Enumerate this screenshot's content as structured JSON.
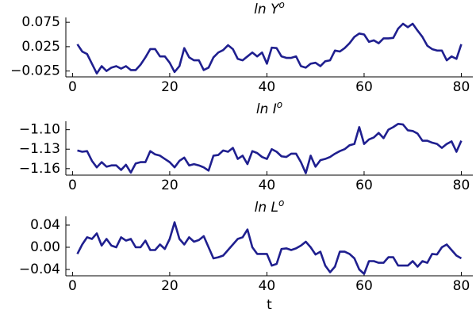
{
  "chart_data": [
    {
      "type": "line",
      "title": "ln Y",
      "title_superscript": "o",
      "x": [
        1,
        2,
        3,
        4,
        5,
        6,
        7,
        8,
        9,
        10,
        11,
        12,
        13,
        14,
        15,
        16,
        17,
        18,
        19,
        20,
        21,
        22,
        23,
        24,
        25,
        26,
        27,
        28,
        29,
        30,
        31,
        32,
        33,
        34,
        35,
        36,
        37,
        38,
        39,
        40,
        41,
        42,
        43,
        44,
        45,
        46,
        47,
        48,
        49,
        50,
        51,
        52,
        53,
        54,
        55,
        56,
        57,
        58,
        59,
        60,
        61,
        62,
        63,
        64,
        65,
        66,
        67,
        68,
        69,
        70,
        71,
        72,
        73,
        74,
        75,
        76,
        77,
        78,
        79,
        80
      ],
      "series": [
        {
          "color": "#1f1f8f",
          "values": [
            0.03,
            0.015,
            0.01,
            -0.01,
            -0.03,
            -0.015,
            -0.025,
            -0.018,
            -0.015,
            -0.02,
            -0.015,
            -0.023,
            -0.023,
            -0.012,
            0.003,
            0.02,
            0.02,
            0.005,
            0.005,
            -0.008,
            -0.027,
            -0.015,
            0.022,
            0.003,
            -0.003,
            -0.003,
            -0.023,
            -0.018,
            0.003,
            0.013,
            0.018,
            0.028,
            0.02,
            0.0,
            -0.003,
            0.005,
            0.013,
            0.005,
            0.013,
            -0.01,
            0.023,
            0.022,
            0.005,
            0.002,
            0.002,
            0.005,
            -0.015,
            -0.018,
            -0.01,
            -0.008,
            -0.015,
            -0.005,
            -0.003,
            0.017,
            0.015,
            0.022,
            0.032,
            0.045,
            0.052,
            0.05,
            0.035,
            0.038,
            0.032,
            0.042,
            0.042,
            0.043,
            0.062,
            0.072,
            0.065,
            0.072,
            0.058,
            0.045,
            0.027,
            0.02,
            0.017,
            0.017,
            -0.003,
            0.005,
            0.0,
            0.03
          ]
        }
      ],
      "xlim": [
        -1.37,
        82.37
      ],
      "xticks": [
        0,
        20,
        40,
        60,
        80
      ],
      "ylim": [
        -0.037,
        0.085
      ],
      "yticks": [
        0.075,
        0.025,
        {
          "value": -0.025,
          "label": "−0.025"
        }
      ],
      "grid": false
    },
    {
      "type": "line",
      "title": "ln I",
      "title_superscript": "o",
      "x": [
        1,
        2,
        3,
        4,
        5,
        6,
        7,
        8,
        9,
        10,
        11,
        12,
        13,
        14,
        15,
        16,
        17,
        18,
        19,
        20,
        21,
        22,
        23,
        24,
        25,
        26,
        27,
        28,
        29,
        30,
        31,
        32,
        33,
        34,
        35,
        36,
        37,
        38,
        39,
        40,
        41,
        42,
        43,
        44,
        45,
        46,
        47,
        48,
        49,
        50,
        51,
        52,
        53,
        54,
        55,
        56,
        57,
        58,
        59,
        60,
        61,
        62,
        63,
        64,
        65,
        66,
        67,
        68,
        69,
        70,
        71,
        72,
        73,
        74,
        75,
        76,
        77,
        78,
        79,
        80
      ],
      "series": [
        {
          "color": "#1f1f8f",
          "values": [
            -1.132,
            -1.134,
            -1.133,
            -1.148,
            -1.158,
            -1.15,
            -1.157,
            -1.155,
            -1.155,
            -1.162,
            -1.154,
            -1.166,
            -1.152,
            -1.15,
            -1.15,
            -1.133,
            -1.138,
            -1.14,
            -1.145,
            -1.15,
            -1.158,
            -1.148,
            -1.143,
            -1.155,
            -1.153,
            -1.155,
            -1.158,
            -1.163,
            -1.14,
            -1.139,
            -1.132,
            -1.134,
            -1.128,
            -1.145,
            -1.14,
            -1.153,
            -1.133,
            -1.136,
            -1.142,
            -1.145,
            -1.13,
            -1.134,
            -1.141,
            -1.142,
            -1.137,
            -1.137,
            -1.15,
            -1.167,
            -1.14,
            -1.157,
            -1.147,
            -1.145,
            -1.142,
            -1.137,
            -1.133,
            -1.13,
            -1.124,
            -1.122,
            -1.096,
            -1.122,
            -1.115,
            -1.112,
            -1.105,
            -1.113,
            -1.1,
            -1.096,
            -1.091,
            -1.092,
            -1.101,
            -1.102,
            -1.106,
            -1.117,
            -1.117,
            -1.12,
            -1.122,
            -1.128,
            -1.122,
            -1.118,
            -1.134,
            -1.117
          ]
        }
      ],
      "xlim": [
        -1.37,
        82.37
      ],
      "xticks": [
        0,
        20,
        40,
        60,
        80
      ],
      "ylim": [
        -1.17,
        -1.087
      ],
      "yticks": [
        {
          "value": -1.1,
          "label": "−1.10"
        },
        {
          "value": -1.13,
          "label": "−1.13"
        },
        {
          "value": -1.16,
          "label": "−1.16"
        }
      ],
      "grid": false
    },
    {
      "type": "line",
      "title": "ln L",
      "title_superscript": "o",
      "xlabel": "t",
      "x": [
        1,
        2,
        3,
        4,
        5,
        6,
        7,
        8,
        9,
        10,
        11,
        12,
        13,
        14,
        15,
        16,
        17,
        18,
        19,
        20,
        21,
        22,
        23,
        24,
        25,
        26,
        27,
        28,
        29,
        30,
        31,
        32,
        33,
        34,
        35,
        36,
        37,
        38,
        39,
        40,
        41,
        42,
        43,
        44,
        45,
        46,
        47,
        48,
        49,
        50,
        51,
        52,
        53,
        54,
        55,
        56,
        57,
        58,
        59,
        60,
        61,
        62,
        63,
        64,
        65,
        66,
        67,
        68,
        69,
        70,
        71,
        72,
        73,
        74,
        75,
        76,
        77,
        78,
        79,
        80
      ],
      "series": [
        {
          "color": "#1f1f8f",
          "values": [
            -0.012,
            0.005,
            0.018,
            0.015,
            0.025,
            0.003,
            0.015,
            0.003,
            0.0,
            0.018,
            0.012,
            0.015,
            0.0,
            0.0,
            0.012,
            -0.005,
            -0.005,
            0.005,
            -0.003,
            0.015,
            0.045,
            0.015,
            0.005,
            0.018,
            0.01,
            0.013,
            0.02,
            0.0,
            -0.02,
            -0.018,
            -0.015,
            -0.005,
            0.005,
            0.015,
            0.018,
            0.032,
            0.0,
            -0.012,
            -0.012,
            -0.012,
            -0.033,
            -0.03,
            -0.003,
            -0.002,
            -0.005,
            -0.002,
            0.003,
            0.01,
            0.0,
            -0.013,
            -0.008,
            -0.033,
            -0.045,
            -0.035,
            -0.008,
            -0.008,
            -0.012,
            -0.02,
            -0.04,
            -0.048,
            -0.025,
            -0.025,
            -0.028,
            -0.028,
            -0.018,
            -0.018,
            -0.033,
            -0.033,
            -0.033,
            -0.025,
            -0.035,
            -0.025,
            -0.028,
            -0.012,
            -0.013,
            0.0,
            0.005,
            -0.005,
            -0.015,
            -0.02
          ]
        }
      ],
      "xlim": [
        -1.37,
        82.37
      ],
      "xticks": [
        0,
        20,
        40,
        60,
        80
      ],
      "ylim": [
        -0.0514,
        0.0557
      ],
      "yticks": [
        0.04,
        {
          "value": 0,
          "label": "0.00"
        },
        {
          "value": -0.04,
          "label": "−0.04"
        }
      ],
      "grid": false
    }
  ]
}
